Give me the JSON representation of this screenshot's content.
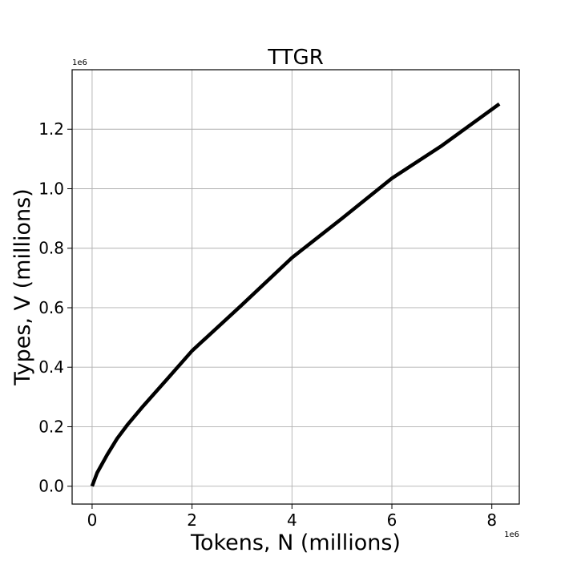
{
  "chart_data": {
    "type": "line",
    "title": "TTGR",
    "xlabel": "Tokens, N (millions)",
    "ylabel": "Types, V (millions)",
    "x_offset_label": "1e6",
    "y_offset_label": "1e6",
    "xlim": [
      -0.4,
      8.55
    ],
    "ylim": [
      -0.06,
      1.4
    ],
    "x_ticks": [
      0,
      2,
      4,
      6,
      8
    ],
    "x_tick_labels": [
      "0",
      "2",
      "4",
      "6",
      "8"
    ],
    "y_ticks": [
      0.0,
      0.2,
      0.4,
      0.6,
      0.8,
      1.0,
      1.2
    ],
    "y_tick_labels": [
      "0.0",
      "0.2",
      "0.4",
      "0.6",
      "0.8",
      "1.0",
      "1.2"
    ],
    "grid": true,
    "legend": "none",
    "line_color": "#000000",
    "series": [
      {
        "x": [
          0,
          0.1,
          0.3,
          0.5,
          0.7,
          1.0,
          1.5,
          2.0,
          3.0,
          4.0,
          5.0,
          6.0,
          7.0,
          8.15
        ],
        "values": [
          0,
          0.045,
          0.105,
          0.16,
          0.205,
          0.265,
          0.36,
          0.455,
          0.61,
          0.768,
          0.9,
          1.035,
          1.145,
          1.285
        ]
      }
    ]
  }
}
